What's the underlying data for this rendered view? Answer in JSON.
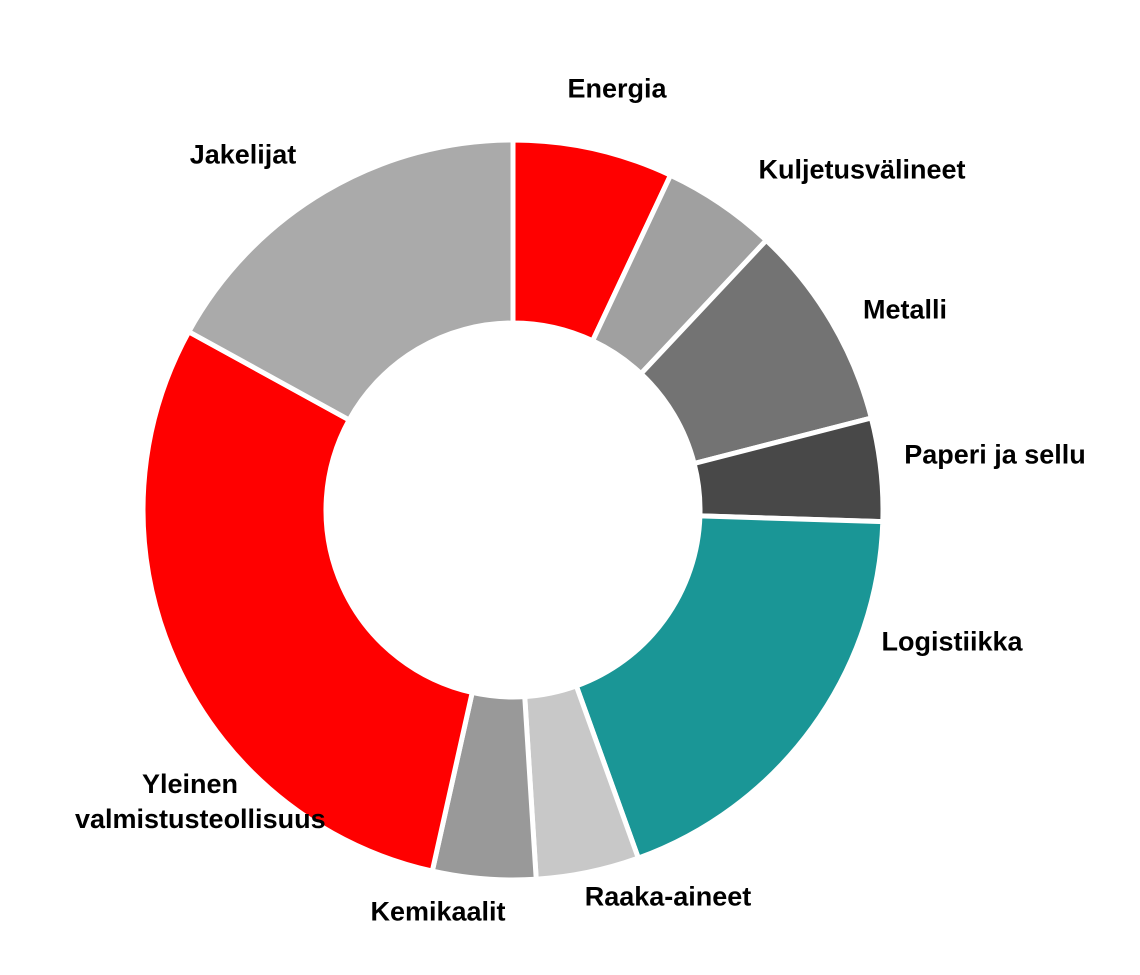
{
  "chart_data": {
    "type": "donut",
    "categories": [
      "Energia",
      "Kuljetusvälineet",
      "Metalli",
      "Paperi ja sellu",
      "Logistiikka",
      "Raaka-aineet",
      "Kemikaalit",
      "Yleinen valmistusteollisuus",
      "Jakelijat"
    ],
    "values": [
      7,
      5,
      9,
      4.5,
      19,
      4.5,
      4.5,
      29.5,
      17
    ],
    "colors": [
      "#ff0000",
      "#a0a0a0",
      "#737373",
      "#484848",
      "#1a9696",
      "#c8c8c8",
      "#999999",
      "#ff0000",
      "#aaaaaa"
    ]
  }
}
